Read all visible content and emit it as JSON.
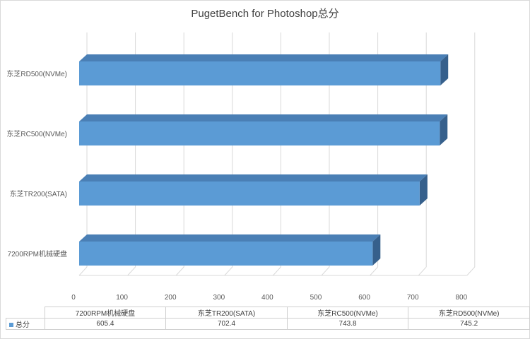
{
  "chart_data": {
    "type": "bar",
    "orientation": "horizontal",
    "style": "3d",
    "title": "PugetBench for Photoshop总分",
    "categories": [
      "7200RPM机械硬盘",
      "东芝TR200(SATA)",
      "东芝RC500(NVMe)",
      "东芝RD500(NVMe)"
    ],
    "series": [
      {
        "name": "总分",
        "values": [
          605.4,
          702.4,
          743.8,
          745.2
        ]
      }
    ],
    "xlim": [
      0,
      800
    ],
    "x_ticks": [
      "0",
      "100",
      "200",
      "300",
      "400",
      "500",
      "600",
      "700",
      "800"
    ],
    "grid": true,
    "legend": "data-table",
    "colors": {
      "bar_front": "#5b9bd5",
      "bar_top": "#4a7fb5",
      "bar_side": "#36608c",
      "grid": "#d9d9d9"
    },
    "data_table": {
      "headers": [
        "7200RPM机械硬盘",
        "东芝TR200(SATA)",
        "东芝RC500(NVMe)",
        "东芝RD500(NVMe)"
      ],
      "row_label": "总分",
      "values": [
        "605.4",
        "702.4",
        "743.8",
        "745.2"
      ]
    }
  }
}
